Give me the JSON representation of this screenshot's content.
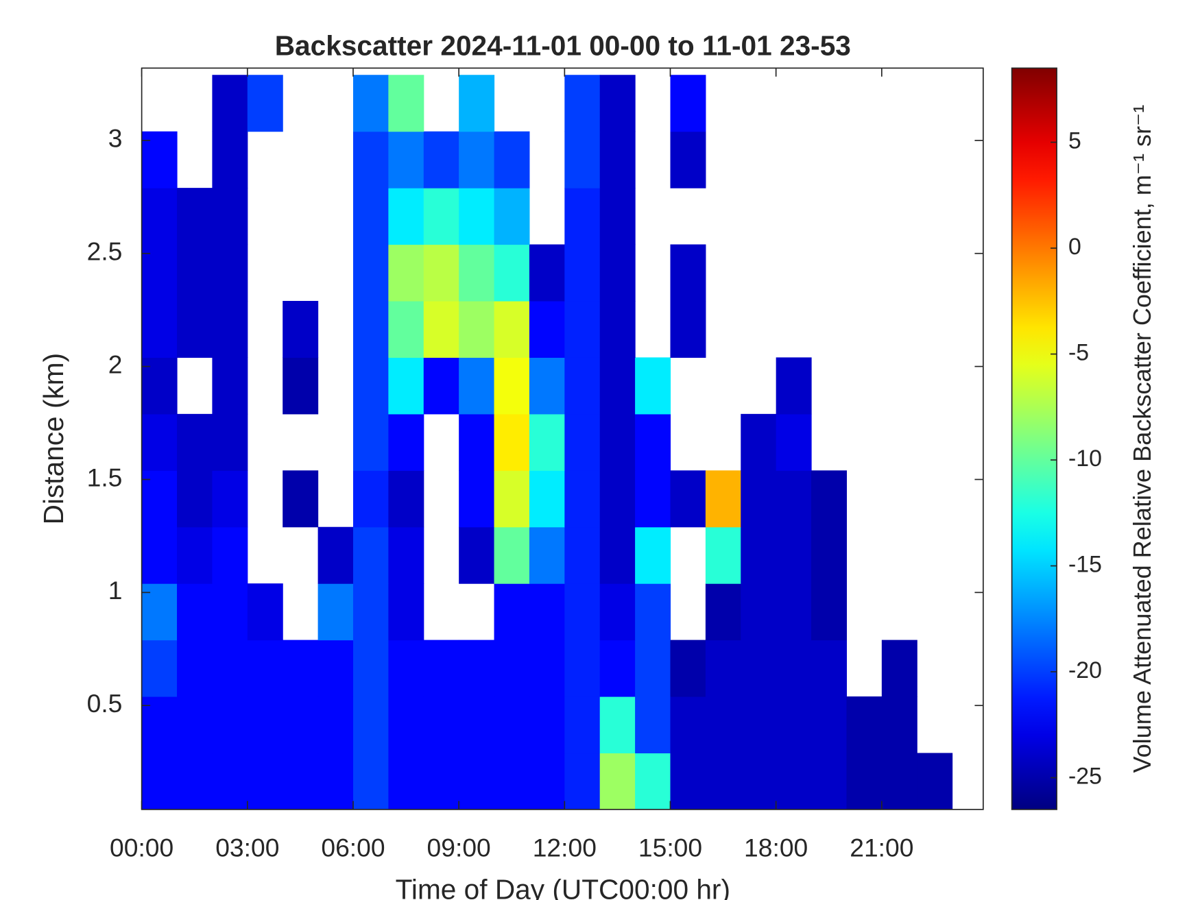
{
  "chart_data": {
    "type": "heatmap",
    "title": "Backscatter 2024-11-01 00-00 to 11-01 23-53",
    "xlabel": "Time of Day (UTC00:00 hr)",
    "ylabel": "Distance (km)",
    "colorbar_label": "Volume Attenuated Relative Backscatter Coefficient, m⁻¹ sr⁻¹",
    "colormap": "jet",
    "grid": false,
    "xlim": [
      0,
      23.88
    ],
    "xticks": [
      {
        "value": 0,
        "label": "00:00"
      },
      {
        "value": 3,
        "label": "03:00"
      },
      {
        "value": 6,
        "label": "06:00"
      },
      {
        "value": 9,
        "label": "09:00"
      },
      {
        "value": 12,
        "label": "12:00"
      },
      {
        "value": 15,
        "label": "15:00"
      },
      {
        "value": 18,
        "label": "18:00"
      },
      {
        "value": 21,
        "label": "21:00"
      }
    ],
    "ylim": [
      0.04,
      3.32
    ],
    "yticks": [
      0.5,
      1,
      1.5,
      2,
      2.5,
      3
    ],
    "clim": [
      -26.5,
      8.5
    ],
    "cticks": [
      -25,
      -20,
      -15,
      -10,
      -5,
      0,
      5
    ],
    "x": [
      0.5,
      1.5,
      2.5,
      3.5,
      4.5,
      5.5,
      6.5,
      7.5,
      8.5,
      9.5,
      10.5,
      11.5,
      12.5,
      13.5,
      14.5,
      15.5,
      16.5,
      17.5,
      18.5,
      19.5,
      20.5,
      21.5,
      22.5,
      23.5
    ],
    "y": [
      0.165,
      0.415,
      0.665,
      0.915,
      1.165,
      1.415,
      1.665,
      1.915,
      2.165,
      2.415,
      2.665,
      2.915,
      3.165
    ],
    "z": [
      [
        -22,
        -22,
        -22,
        -22,
        -22,
        -22,
        -20,
        -22,
        -22,
        -22,
        -22,
        -22,
        -21,
        -8,
        -12,
        -24,
        -24,
        -24,
        -24,
        -24,
        -25,
        -25,
        -25,
        null
      ],
      [
        -22,
        -22,
        -22,
        -22,
        -22,
        -22,
        -20,
        -22,
        -22,
        -22,
        -22,
        -22,
        -21,
        -12,
        -20,
        -24,
        -24,
        -24,
        -24,
        -24,
        -25,
        -25,
        null,
        null
      ],
      [
        -20,
        -22,
        -22,
        -22,
        -22,
        -22,
        -20,
        -22,
        -22,
        -22,
        -22,
        -22,
        -21,
        -22,
        -20,
        -25,
        -24,
        -24,
        -24,
        -24,
        null,
        -25,
        null,
        null
      ],
      [
        -18,
        -22,
        -22,
        -23,
        null,
        -18,
        -20,
        -23,
        null,
        null,
        -22,
        -22,
        -21,
        -23,
        -20,
        null,
        -25,
        -24,
        -24,
        -25,
        null,
        null,
        null,
        null
      ],
      [
        -22,
        -23,
        -22,
        null,
        null,
        -24,
        -20,
        -23,
        null,
        -24,
        -10,
        -18,
        -21,
        -24,
        -14,
        null,
        -12,
        -24,
        -24,
        -25,
        null,
        null,
        null,
        null
      ],
      [
        -22,
        -24,
        -23,
        null,
        -25,
        null,
        -21,
        -24,
        null,
        -22,
        -6,
        -14,
        -21,
        -24,
        -22,
        -24,
        -2,
        -24,
        -24,
        -25,
        null,
        null,
        null,
        null
      ],
      [
        -23,
        -24,
        -24,
        null,
        null,
        null,
        -20,
        -22,
        null,
        -22,
        -4,
        -12,
        -21,
        -24,
        -22,
        null,
        null,
        -24,
        -23,
        null,
        null,
        null,
        null,
        null
      ],
      [
        -24,
        null,
        -24,
        null,
        -25,
        null,
        -20,
        -14,
        -22,
        -18,
        -5,
        -18,
        -21,
        -24,
        -14,
        null,
        null,
        null,
        -24,
        null,
        null,
        null,
        null,
        null
      ],
      [
        -23,
        -24,
        -24,
        null,
        -24,
        null,
        -20,
        -10,
        -6,
        -8,
        -6,
        -22,
        -21,
        -24,
        null,
        -24,
        null,
        null,
        null,
        null,
        null,
        null,
        null,
        null
      ],
      [
        -23,
        -24,
        -24,
        null,
        null,
        null,
        -20,
        -8,
        -7,
        -10,
        -12,
        -24,
        -21,
        -24,
        null,
        -24,
        null,
        null,
        null,
        null,
        null,
        null,
        null,
        null
      ],
      [
        -23,
        -24,
        -24,
        null,
        null,
        null,
        -20,
        -14,
        -12,
        -14,
        -16,
        null,
        -21,
        -24,
        null,
        null,
        null,
        null,
        null,
        null,
        null,
        null,
        null,
        null
      ],
      [
        -22,
        null,
        -24,
        null,
        null,
        null,
        -20,
        -18,
        -20,
        -18,
        -20,
        null,
        -20,
        -24,
        null,
        -24,
        null,
        null,
        null,
        null,
        null,
        null,
        null,
        null
      ],
      [
        null,
        null,
        -24,
        -20,
        null,
        null,
        -18,
        -10,
        null,
        -16,
        null,
        null,
        -20,
        -24,
        null,
        -22,
        null,
        null,
        null,
        null,
        null,
        null,
        null,
        null
      ]
    ]
  }
}
